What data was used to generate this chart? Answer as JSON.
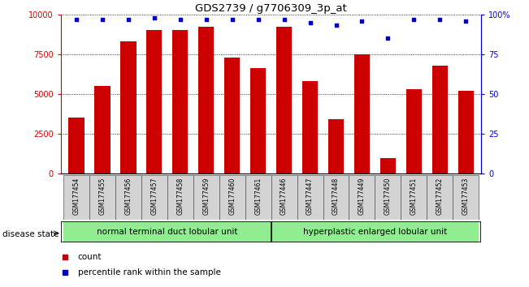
{
  "title": "GDS2739 / g7706309_3p_at",
  "samples": [
    "GSM177454",
    "GSM177455",
    "GSM177456",
    "GSM177457",
    "GSM177458",
    "GSM177459",
    "GSM177460",
    "GSM177461",
    "GSM177446",
    "GSM177447",
    "GSM177448",
    "GSM177449",
    "GSM177450",
    "GSM177451",
    "GSM177452",
    "GSM177453"
  ],
  "counts": [
    3500,
    5500,
    8300,
    9000,
    9000,
    9200,
    7300,
    6600,
    9200,
    5800,
    3400,
    7500,
    1000,
    5300,
    6800,
    5200
  ],
  "percentiles": [
    97,
    97,
    97,
    98,
    97,
    97,
    97,
    97,
    97,
    95,
    93,
    96,
    85,
    97,
    97,
    96
  ],
  "group1_label": "normal terminal duct lobular unit",
  "group2_label": "hyperplastic enlarged lobular unit",
  "group1_count": 8,
  "group2_count": 8,
  "bar_color": "#cc0000",
  "dot_color": "#0000cc",
  "ylim_left": [
    0,
    10000
  ],
  "ylim_right": [
    0,
    100
  ],
  "yticks_left": [
    0,
    2500,
    5000,
    7500,
    10000
  ],
  "yticks_right": [
    0,
    25,
    50,
    75,
    100
  ],
  "ytick_labels_left": [
    "0",
    "2500",
    "5000",
    "7500",
    "10000"
  ],
  "ytick_labels_right": [
    "0",
    "25",
    "50",
    "75",
    "100%"
  ],
  "group1_color": "#90ee90",
  "group2_color": "#90ee90",
  "bar_width": 0.6,
  "label_bg": "#d3d3d3"
}
